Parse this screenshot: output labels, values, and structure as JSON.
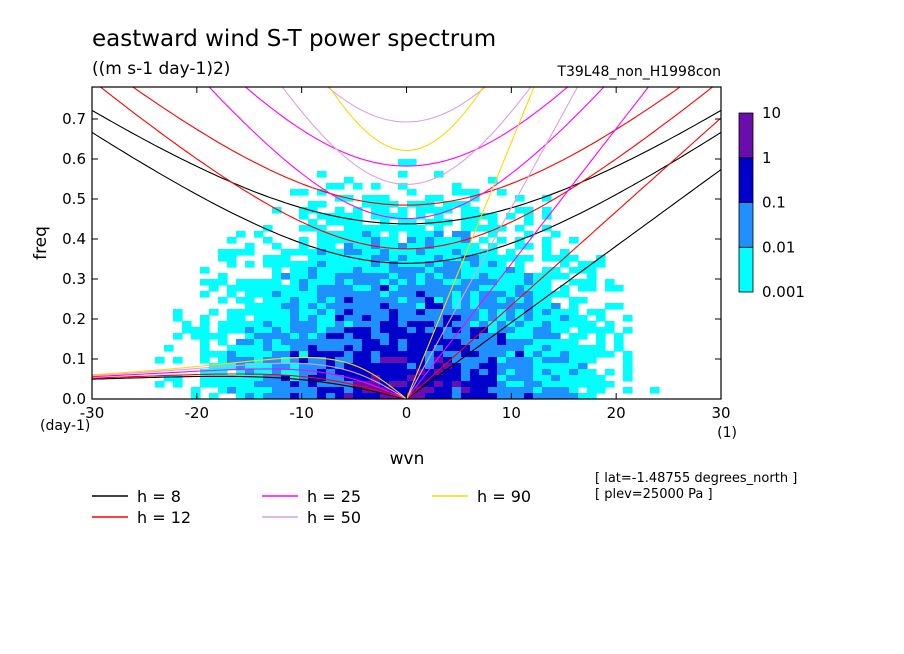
{
  "title": "eastward wind S-T power spectrum",
  "units": "((m s-1 day-1)2)",
  "run_id": "T39L48_non_H1998con",
  "colors": {
    "level_0": "#00ffff",
    "level_1": "#1e90ff",
    "level_2": "#0000cd",
    "level_3": "#6a0dad",
    "background": "#ffffff"
  },
  "chart_data": {
    "type": "heatmap",
    "xlabel": "wvn",
    "x_unit": "(1)",
    "ylabel": "freq",
    "y_unit": "(day-1)",
    "xlim": [
      -30,
      30
    ],
    "ylim": [
      0,
      0.78
    ],
    "xticks": [
      -30,
      -20,
      -10,
      0,
      10,
      20,
      30
    ],
    "xtick_labels": [
      "-30",
      "-20",
      "-10",
      "0",
      "10",
      "20",
      "30"
    ],
    "yticks": [
      0.0,
      0.1,
      0.2,
      0.3,
      0.4,
      0.5,
      0.6,
      0.7
    ],
    "ytick_labels": [
      "0.0",
      "0.1",
      "0.2",
      "0.3",
      "0.4",
      "0.5",
      "0.6",
      "0.7"
    ],
    "colorbar": {
      "levels": [
        "0.001",
        "0.01",
        "0.1",
        "1",
        "10"
      ],
      "colors": [
        "#00ffff",
        "#1e90ff",
        "#0000cd",
        "#6a0dad"
      ]
    },
    "dispersion_curves": [
      {
        "label": "h =  8",
        "h": 8,
        "color": "#000000"
      },
      {
        "label": "h = 12",
        "h": 12,
        "color": "#ff0000"
      },
      {
        "label": "h = 25",
        "h": 25,
        "color": "#ff00ff"
      },
      {
        "label": "h = 50",
        "h": 50,
        "color": "#dda0dd"
      },
      {
        "label": "h = 90",
        "h": 90,
        "color": "#ffd700"
      }
    ],
    "annotations": [
      "[ lat=-1.48755 degrees_north ]",
      "[ plev=25000 Pa ]"
    ]
  }
}
